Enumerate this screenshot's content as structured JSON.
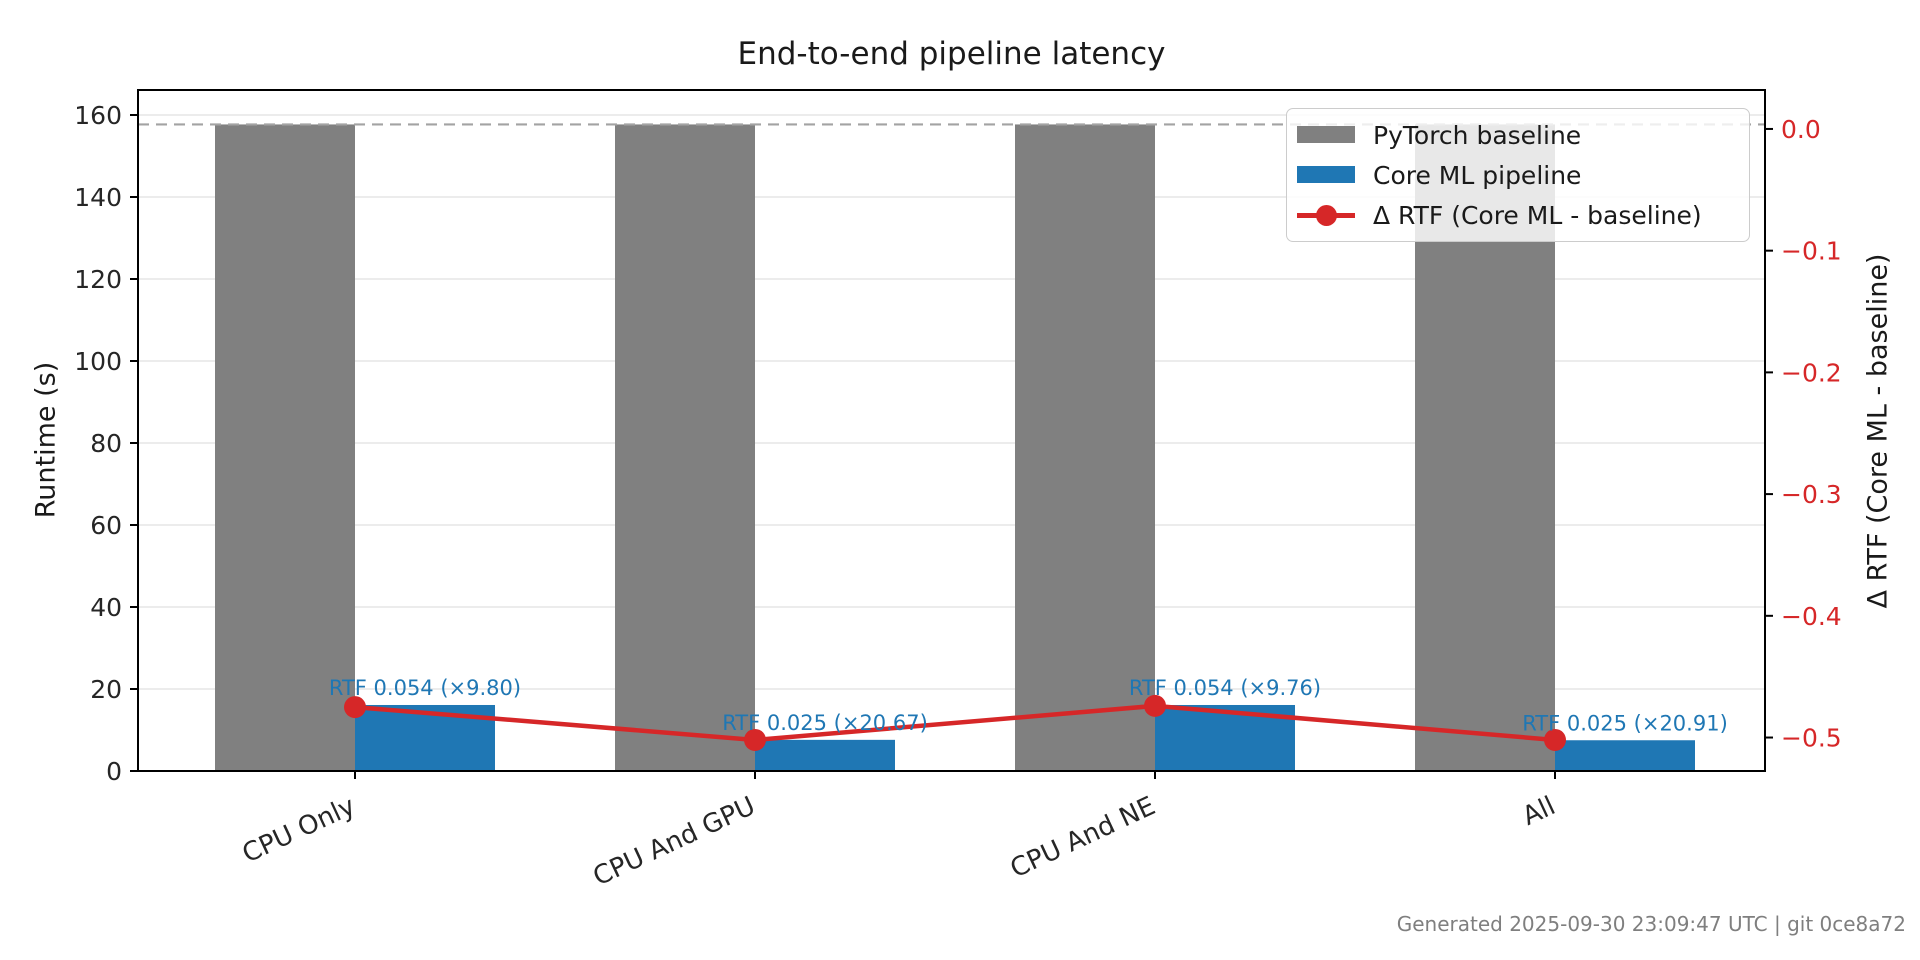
{
  "title": "End-to-end pipeline latency",
  "footer": {
    "text": "Generated 2025-09-30 23:09:47 UTC | git 0ce8a72"
  },
  "legend": {
    "items": [
      {
        "label": "PyTorch baseline",
        "type": "patch",
        "color": "#808080"
      },
      {
        "label": "Core ML pipeline",
        "type": "patch",
        "color": "#1f77b4"
      },
      {
        "label": "Δ RTF (Core ML - baseline)",
        "type": "line-marker",
        "color": "#d62728"
      }
    ]
  },
  "chart_data": {
    "type": "bar",
    "title": "End-to-end pipeline latency",
    "categories": [
      "CPU Only",
      "CPU And GPU",
      "CPU And NE",
      "All"
    ],
    "series": [
      {
        "name": "PyTorch baseline",
        "type": "bar",
        "axis": "left",
        "color": "#808080",
        "values": [
          157.7,
          157.7,
          157.7,
          157.7
        ]
      },
      {
        "name": "Core ML pipeline",
        "type": "bar",
        "axis": "left",
        "color": "#1f77b4",
        "values": [
          16.1,
          7.6,
          16.1,
          7.5
        ]
      },
      {
        "name": "Δ RTF (Core ML - baseline)",
        "type": "line",
        "axis": "right",
        "color": "#d62728",
        "marker": "circle",
        "values": [
          -0.475,
          -0.502,
          -0.474,
          -0.502
        ]
      }
    ],
    "bar_annotations": {
      "color": "#1f77b4",
      "items": [
        {
          "text": "RTF 0.054 (×9.80)"
        },
        {
          "text": "RTF 0.025 (×20.67)"
        },
        {
          "text": "RTF 0.054 (×9.76)"
        },
        {
          "text": "RTF 0.025 (×20.91)"
        }
      ]
    },
    "reference_line": {
      "axis": "left",
      "value": 157.7,
      "style": "dashed",
      "color": "#a3a3a3"
    },
    "axes": {
      "left": {
        "label": "Runtime (s)",
        "tick_values": [
          0,
          20,
          40,
          60,
          80,
          100,
          120,
          140,
          160
        ],
        "tick_labels": [
          "0",
          "20",
          "40",
          "60",
          "80",
          "100",
          "120",
          "140",
          "160"
        ],
        "lim": [
          0,
          166.1
        ],
        "color": "#262626"
      },
      "right": {
        "label": "Δ RTF (Core ML - baseline)",
        "tick_values": [
          0,
          -0.1,
          -0.2,
          -0.3,
          -0.4,
          -0.5
        ],
        "tick_labels": [
          "0.0",
          "−0.1",
          "−0.2",
          "−0.3",
          "−0.4",
          "−0.5"
        ],
        "lim": [
          -0.5275,
          0.032
        ],
        "color": "#d62728"
      }
    },
    "x_tick_rotation": 25,
    "grid": true,
    "gridline_color": "#e6e6e6",
    "legend_position": "upper right"
  }
}
